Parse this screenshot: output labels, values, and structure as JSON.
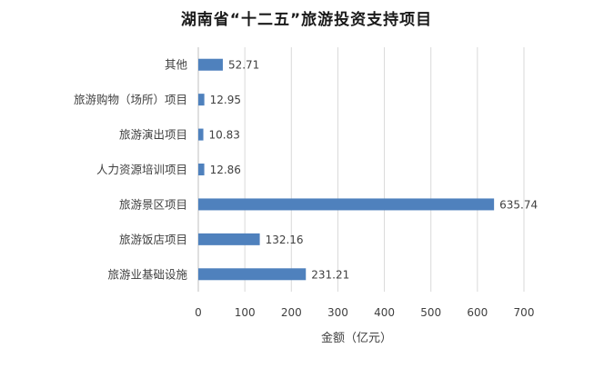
{
  "chart_data": {
    "type": "bar",
    "orientation": "horizontal",
    "title": "湖南省“十二五”旅游投资支持项目",
    "xlabel": "金额（亿元）",
    "ylabel": "",
    "categories": [
      "其他",
      "旅游购物（场所）项目",
      "旅游演出项目",
      "人力资源培训项目",
      "旅游景区项目",
      "旅游饭店项目",
      "旅游业基础设施"
    ],
    "values": [
      52.71,
      12.95,
      10.83,
      12.86,
      635.74,
      132.16,
      231.21
    ],
    "value_labels": [
      "52.71",
      "12.95",
      "10.83",
      "12.86",
      "635.74",
      "132.16",
      "231.21"
    ],
    "xlim": [
      0,
      700
    ],
    "xticks": [
      0,
      100,
      200,
      300,
      400,
      500,
      600,
      700
    ],
    "xtick_labels": [
      "0",
      "100",
      "200",
      "300",
      "400",
      "500",
      "600",
      "700"
    ],
    "grid": true,
    "legend": "none",
    "bar_color": "#4f81bd"
  }
}
